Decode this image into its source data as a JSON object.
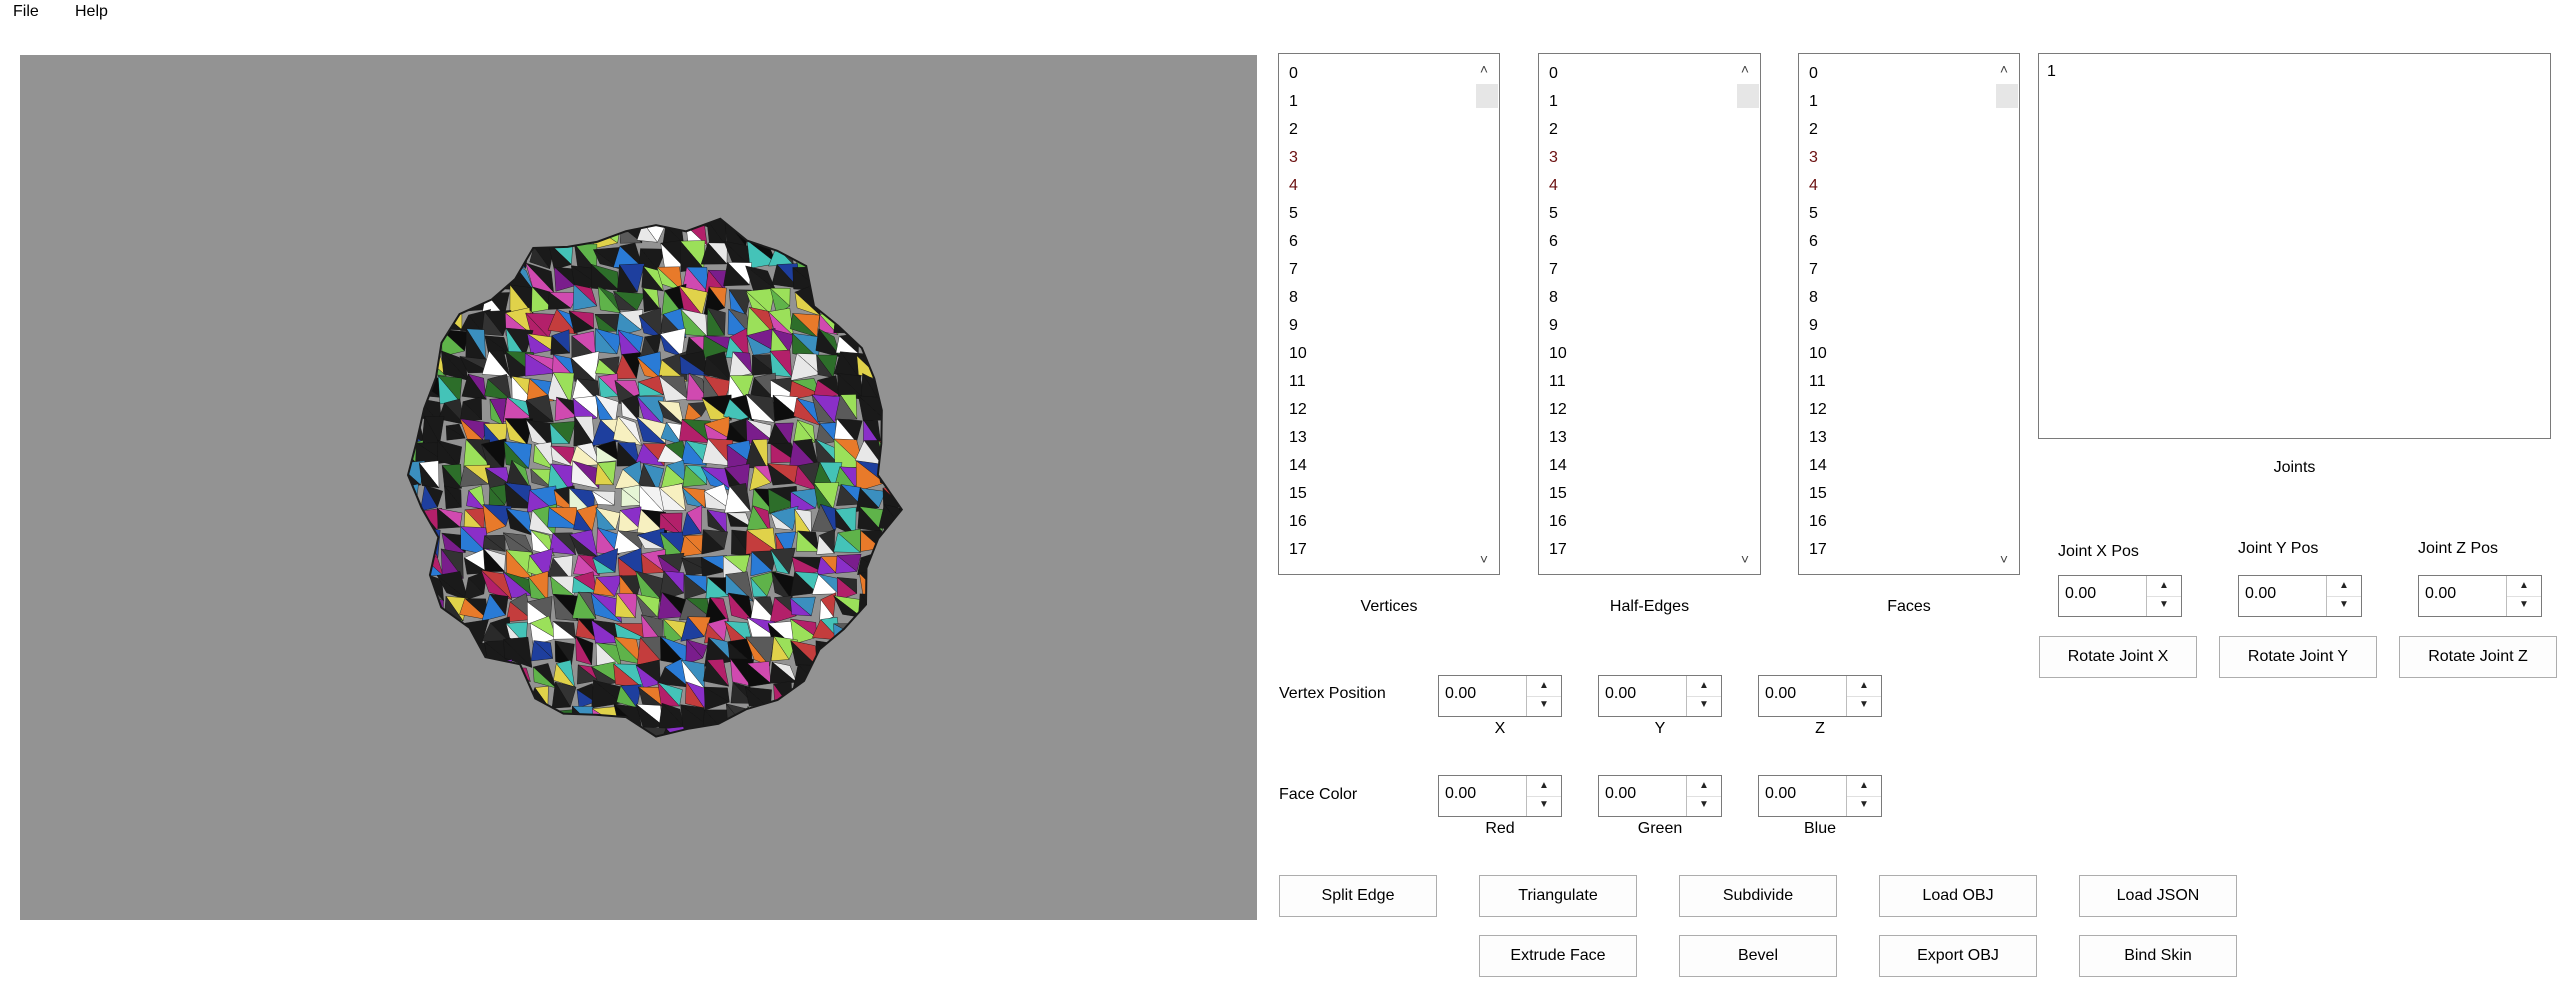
{
  "menu": {
    "file": "File",
    "help": "Help"
  },
  "lists": {
    "vertices": {
      "label": "Vertices",
      "items": [
        "0",
        "1",
        "2",
        "3",
        "4",
        "5",
        "6",
        "7",
        "8",
        "9",
        "10",
        "11",
        "12",
        "13",
        "14",
        "15",
        "16",
        "17"
      ]
    },
    "half_edges": {
      "label": "Half-Edges",
      "items": [
        "0",
        "1",
        "2",
        "3",
        "4",
        "5",
        "6",
        "7",
        "8",
        "9",
        "10",
        "11",
        "12",
        "13",
        "14",
        "15",
        "16",
        "17"
      ]
    },
    "faces": {
      "label": "Faces",
      "items": [
        "0",
        "1",
        "2",
        "3",
        "4",
        "5",
        "6",
        "7",
        "8",
        "9",
        "10",
        "11",
        "12",
        "13",
        "14",
        "15",
        "16",
        "17"
      ]
    },
    "joints": {
      "label": "Joints",
      "items": [
        "1"
      ]
    }
  },
  "vertex_position": {
    "label": "Vertex Position",
    "x": {
      "value": "0.00",
      "label": "X"
    },
    "y": {
      "value": "0.00",
      "label": "Y"
    },
    "z": {
      "value": "0.00",
      "label": "Z"
    }
  },
  "face_color": {
    "label": "Face Color",
    "red": {
      "value": "0.00",
      "label": "Red"
    },
    "green": {
      "value": "0.00",
      "label": "Green"
    },
    "blue": {
      "value": "0.00",
      "label": "Blue"
    }
  },
  "joint_pos": {
    "x": {
      "label": "Joint X Pos",
      "value": "0.00"
    },
    "y": {
      "label": "Joint Y Pos",
      "value": "0.00"
    },
    "z": {
      "label": "Joint Z Pos",
      "value": "0.00"
    }
  },
  "rotate_buttons": {
    "x": "Rotate Joint X",
    "y": "Rotate Joint Y",
    "z": "Rotate Joint Z"
  },
  "actions": {
    "split_edge": "Split Edge",
    "triangulate": "Triangulate",
    "subdivide": "Subdivide",
    "load_obj": "Load OBJ",
    "load_json": "Load JSON",
    "extrude_face": "Extrude Face",
    "bevel": "Bevel",
    "export_obj": "Export OBJ",
    "bind_skin": "Bind Skin"
  },
  "viewport": {
    "background": "#939393"
  }
}
